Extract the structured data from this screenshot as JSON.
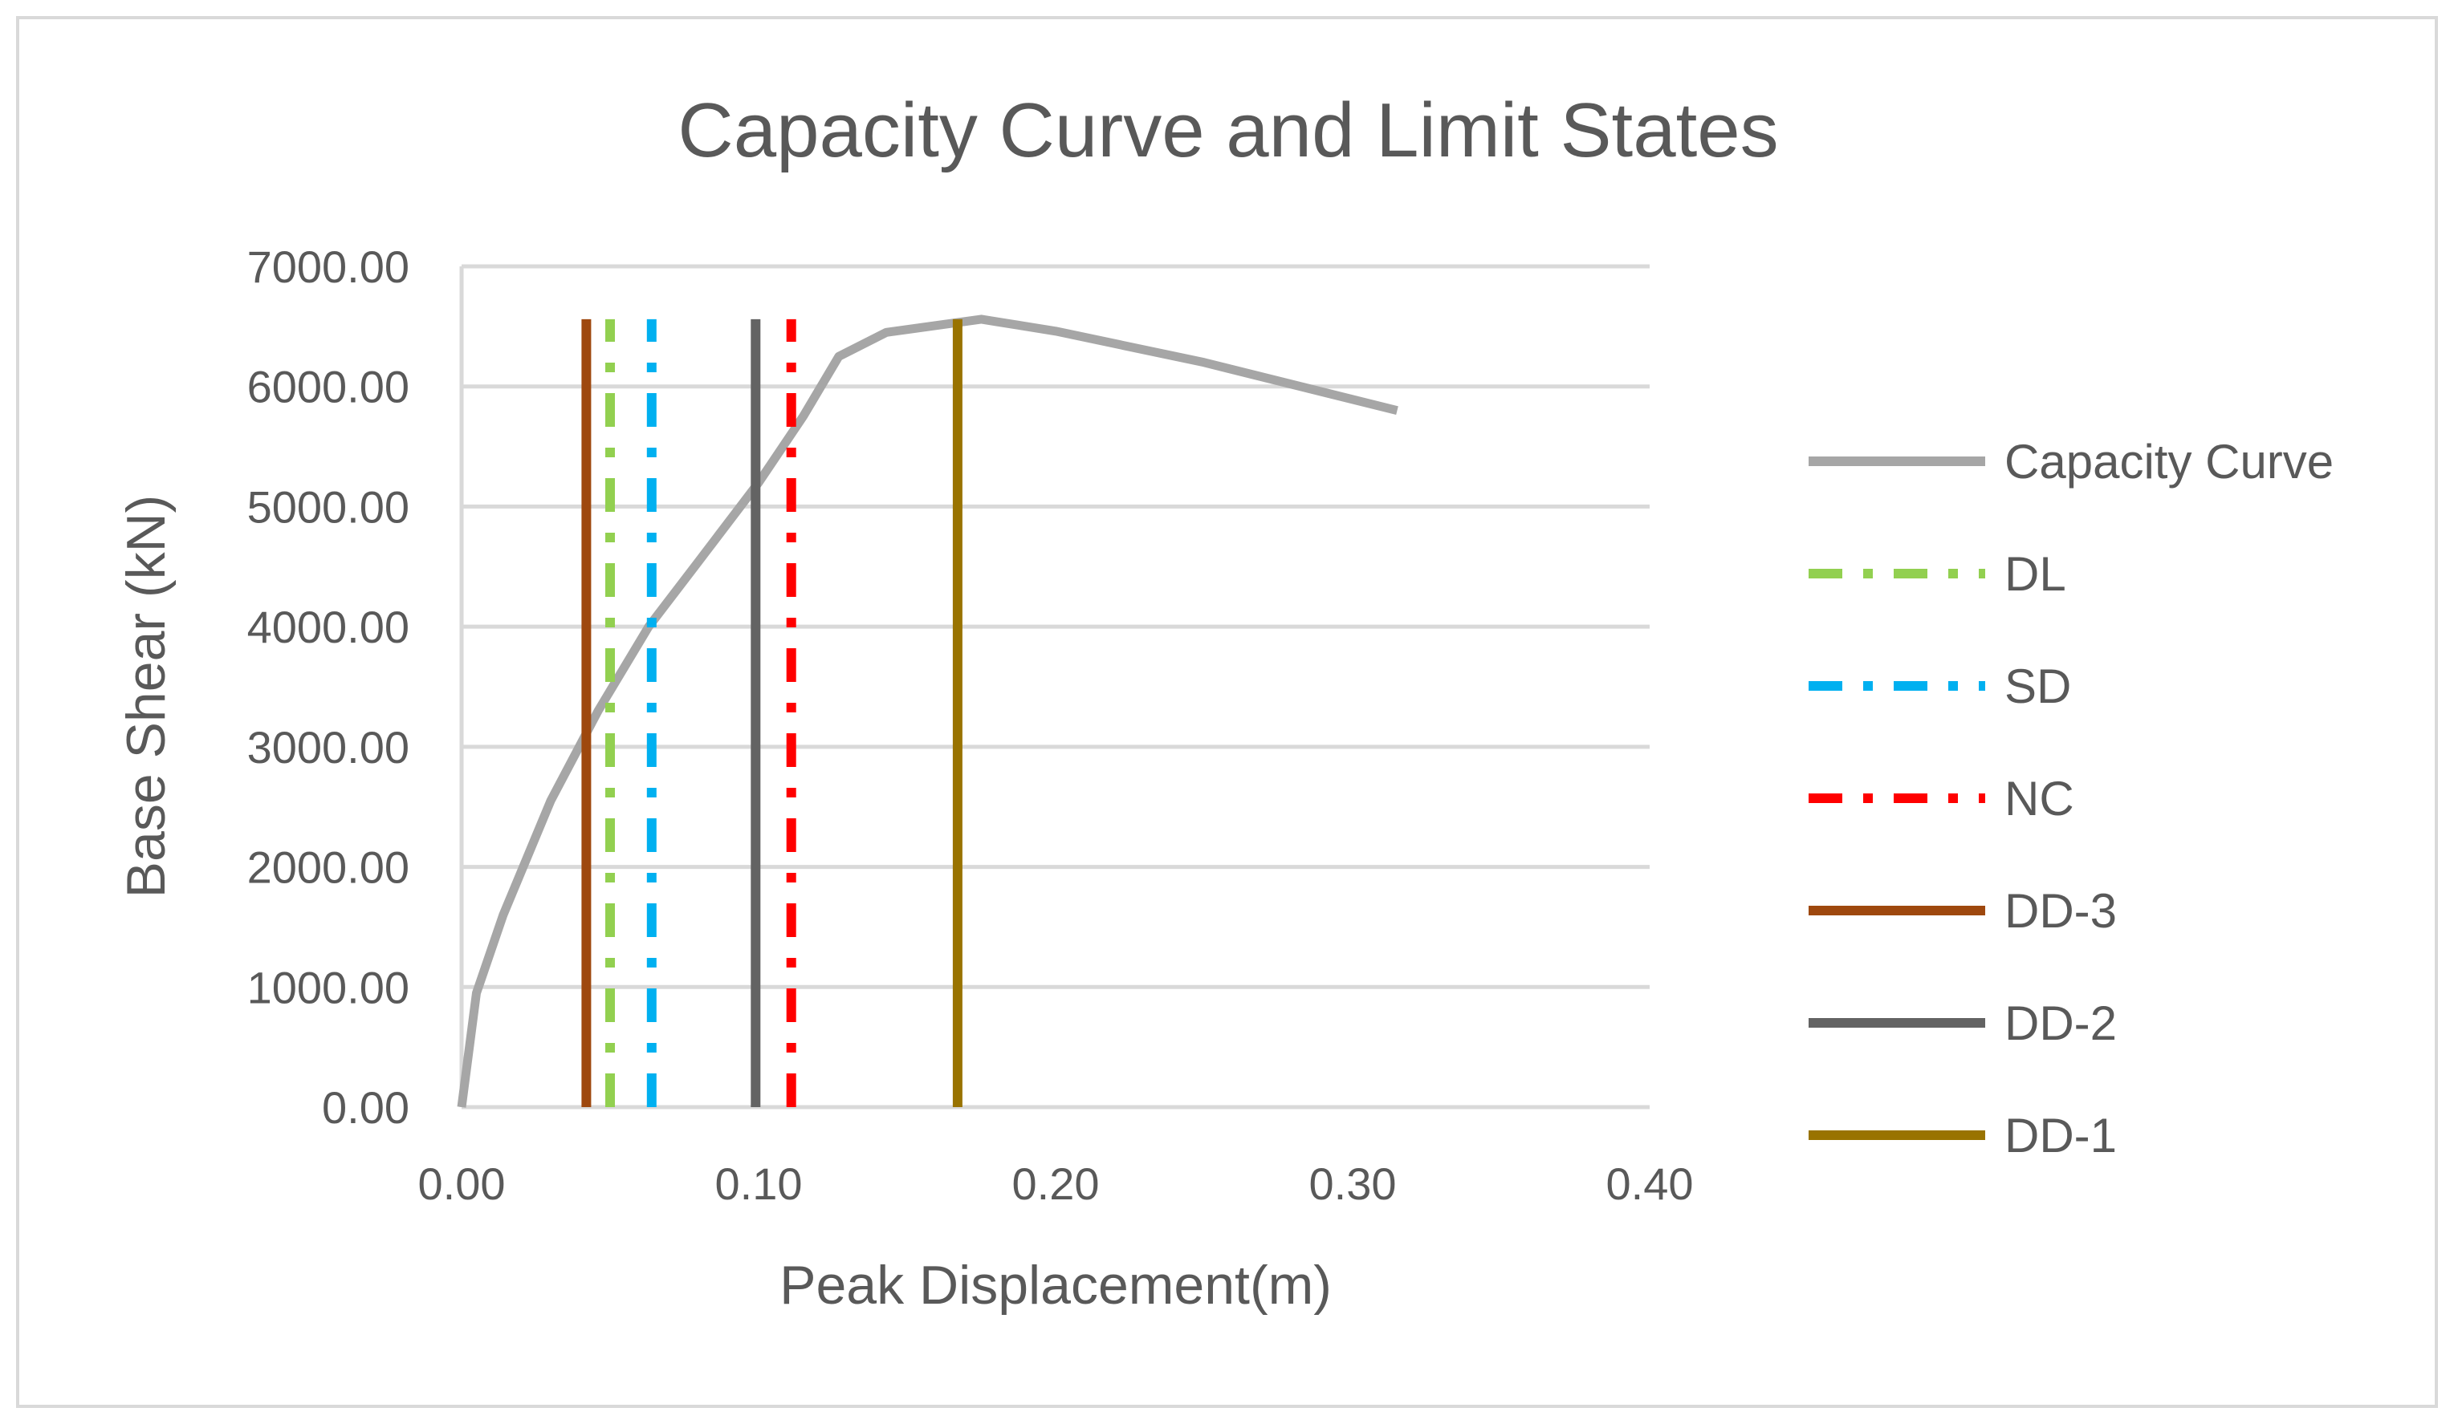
{
  "chart_data": {
    "type": "line",
    "title": "Capacity Curve and Limit States",
    "xlabel": "Peak Displacement(m)",
    "ylabel": "Base Shear (kN)",
    "xlim": [
      0,
      0.4
    ],
    "ylim": [
      0,
      7000
    ],
    "x_ticks": [
      0.0,
      0.1,
      0.2,
      0.3,
      0.4
    ],
    "x_tick_labels": [
      "0.00",
      "0.10",
      "0.20",
      "0.30",
      "0.40"
    ],
    "y_ticks": [
      0,
      1000,
      2000,
      3000,
      4000,
      5000,
      6000,
      7000
    ],
    "y_tick_labels": [
      "0.00",
      "1000.00",
      "2000.00",
      "3000.00",
      "4000.00",
      "5000.00",
      "6000.00",
      "7000.00"
    ],
    "grid": true,
    "legend_position": "right",
    "series": [
      {
        "name": "Capacity Curve",
        "style": "solid",
        "color": "#a6a6a6",
        "x": [
          0.0,
          0.005,
          0.014,
          0.03,
          0.046,
          0.063,
          0.08,
          0.1,
          0.115,
          0.127,
          0.143,
          0.175,
          0.18,
          0.2,
          0.25,
          0.315
        ],
        "y": [
          0,
          950,
          1600,
          2550,
          3300,
          4000,
          4550,
          5200,
          5750,
          6250,
          6450,
          6560,
          6540,
          6460,
          6200,
          5800
        ]
      },
      {
        "name": "DL",
        "style": "dashdot",
        "color": "#92d050",
        "x": [
          0.05,
          0.05
        ],
        "y": [
          0,
          6560
        ]
      },
      {
        "name": "SD",
        "style": "dashdot",
        "color": "#00b0f0",
        "x": [
          0.064,
          0.064
        ],
        "y": [
          0,
          6560
        ]
      },
      {
        "name": "NC",
        "style": "dashdot",
        "color": "#ff0000",
        "x": [
          0.111,
          0.111
        ],
        "y": [
          0,
          6560
        ]
      },
      {
        "name": "DD-3",
        "style": "solid",
        "color": "#9e480e",
        "x": [
          0.042,
          0.042
        ],
        "y": [
          0,
          6560
        ]
      },
      {
        "name": "DD-2",
        "style": "solid",
        "color": "#636363",
        "x": [
          0.099,
          0.099
        ],
        "y": [
          0,
          6560
        ]
      },
      {
        "name": "DD-1",
        "style": "solid",
        "color": "#997300",
        "x": [
          0.167,
          0.167
        ],
        "y": [
          0,
          6560
        ]
      }
    ]
  }
}
